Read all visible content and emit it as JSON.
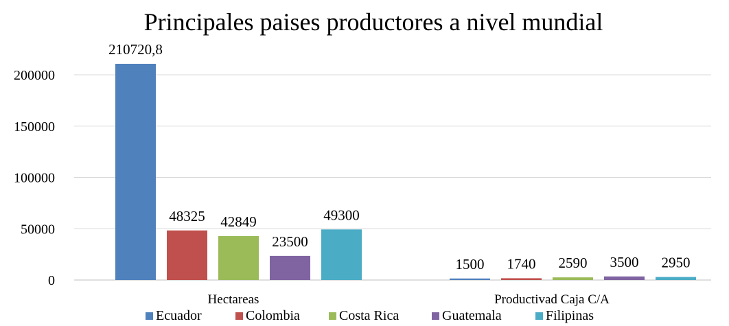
{
  "chart_data": {
    "type": "bar",
    "title": "Principales paises productores a nivel mundial",
    "categories": [
      "Hectareas",
      "Productivad Caja C/A"
    ],
    "series": [
      {
        "name": "Ecuador",
        "values": [
          210720.8,
          1500
        ],
        "labels": [
          "210720,8",
          "1500"
        ],
        "color": "#4F81BD"
      },
      {
        "name": "Colombia",
        "values": [
          48325,
          1740
        ],
        "labels": [
          "48325",
          "1740"
        ],
        "color": "#C0504D"
      },
      {
        "name": "Costa Rica",
        "values": [
          42849,
          2590
        ],
        "labels": [
          "42849",
          "2590"
        ],
        "color": "#9BBB59"
      },
      {
        "name": "Guatemala",
        "values": [
          23500,
          3500
        ],
        "labels": [
          "23500",
          "3500"
        ],
        "color": "#8064A2"
      },
      {
        "name": "Filipinas",
        "values": [
          49300,
          2950
        ],
        "labels": [
          "49300",
          "2950"
        ],
        "color": "#4BACC6"
      }
    ],
    "yticks": [
      0,
      50000,
      100000,
      150000,
      200000
    ],
    "ylim": [
      0,
      220000
    ],
    "grid": true,
    "legend_position": "bottom",
    "xlabel": "",
    "ylabel": ""
  }
}
